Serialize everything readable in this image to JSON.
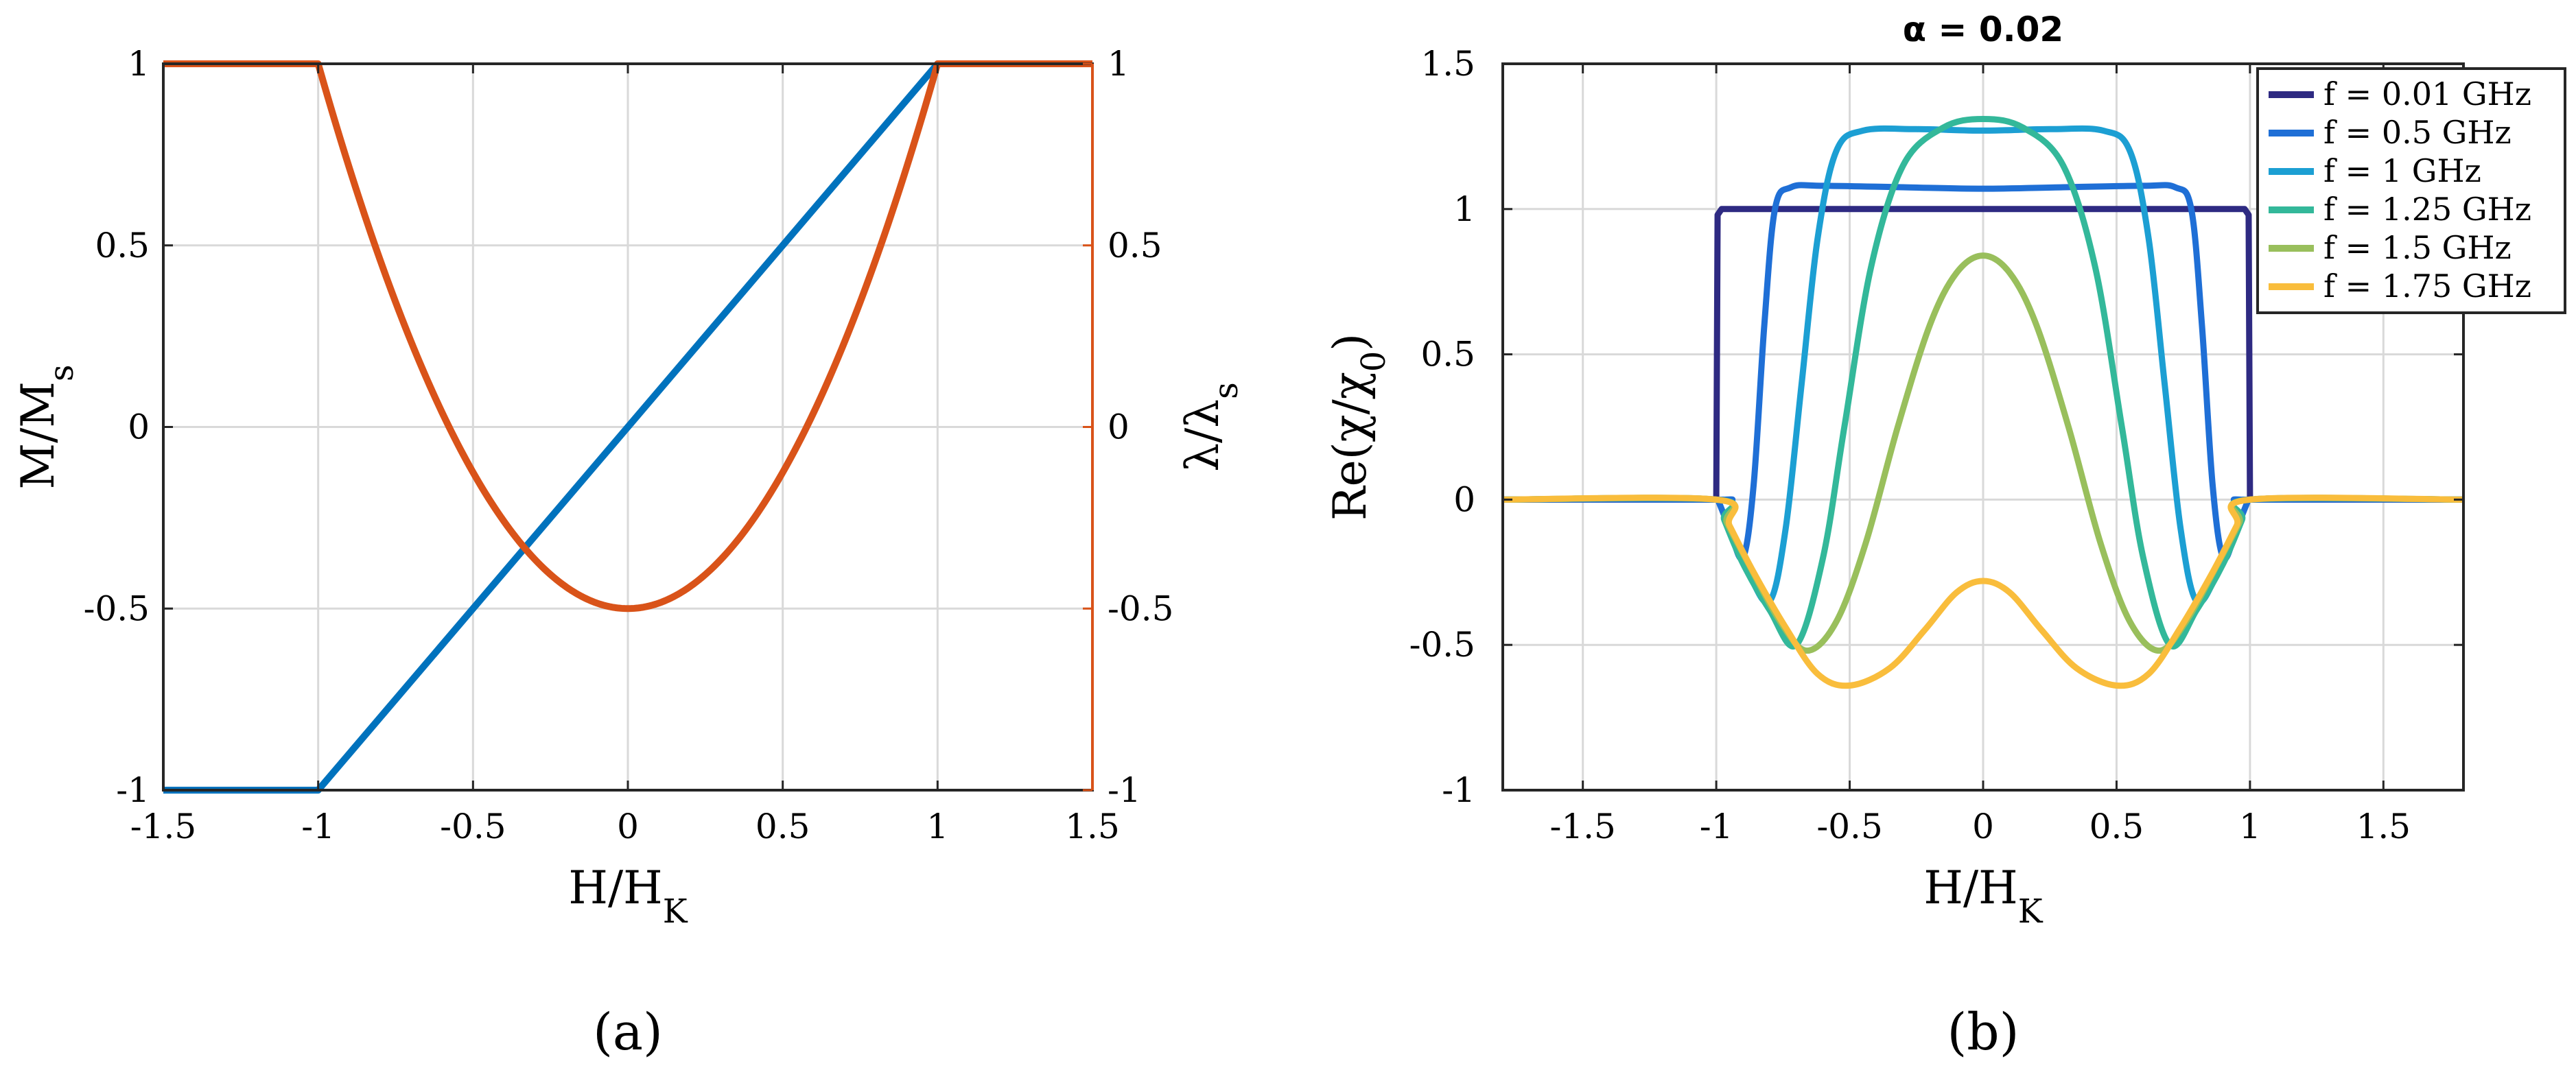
{
  "chart_data": [
    {
      "panel": "(a)",
      "type": "line",
      "title": "",
      "xlabel": "H/H_K",
      "ylabel_left": "M/M_s",
      "ylabel_right": "λ/λ_s",
      "xlim": [
        -1.5,
        1.5
      ],
      "ylim": [
        -1,
        1
      ],
      "xticks": [
        "-1.5",
        "-1",
        "-0.5",
        "0",
        "0.5",
        "1",
        "1.5"
      ],
      "yticks_left": [
        "-1",
        "-0.5",
        "0",
        "0.5",
        "1"
      ],
      "yticks_right": [
        "-1",
        "-0.5",
        "0",
        "0.5",
        "1"
      ],
      "grid": true,
      "series": [
        {
          "name": "M/Ms",
          "axis": "left",
          "color": "#0072BD",
          "x": [
            -1.5,
            -1,
            1,
            1.5
          ],
          "y": [
            -1,
            -1,
            1,
            1
          ]
        },
        {
          "name": "λ/λs",
          "axis": "right",
          "color": "#D95319",
          "formula": "1.5*h^2 - 0.5 for |h|<=1, else 1",
          "x_range": [
            -1.5,
            1.5
          ]
        }
      ]
    },
    {
      "panel": "(b)",
      "type": "line",
      "title": "α = 0.02",
      "xlabel": "H/H_K",
      "ylabel": "Re(χ/χ_0)",
      "xlim": [
        -1.8,
        1.8
      ],
      "ylim": [
        -1,
        1.5
      ],
      "xticks": [
        "-1.5",
        "-1",
        "-0.5",
        "0",
        "0.5",
        "1",
        "1.5"
      ],
      "yticks": [
        "-1",
        "-0.5",
        "0",
        "0.5",
        "1",
        "1.5"
      ],
      "grid": true,
      "legend_position": "top-right",
      "series": [
        {
          "name": "f = 0.01 GHz",
          "color": "#2E2A82",
          "plateau": 1.0,
          "edge_h": 0.99,
          "peak_h": 0.98
        },
        {
          "name": "f = 0.5 GHz",
          "color": "#1F6FD6",
          "center": 1.07,
          "peak": 1.08,
          "peak_h": 0.7,
          "min": -0.2,
          "min_h": 0.9
        },
        {
          "name": "f = 1 GHz",
          "color": "#1C9FD3",
          "center": 1.27,
          "peak": 1.28,
          "peak_h": 0.4,
          "min": -0.35,
          "min_h": 0.8
        },
        {
          "name": "f = 1.25 GHz",
          "color": "#33B89A",
          "center": 1.31,
          "min": -0.5,
          "min_h": 0.7
        },
        {
          "name": "f = 1.5 GHz",
          "color": "#99BF5C",
          "center": 0.84,
          "min": -0.52,
          "min_h": 0.66
        },
        {
          "name": "f = 1.75 GHz",
          "color": "#F9BD3C",
          "center": -0.28,
          "min": -0.64,
          "min_h": 0.5
        }
      ]
    }
  ],
  "captions": {
    "a": "(a)",
    "b": "(b)"
  }
}
